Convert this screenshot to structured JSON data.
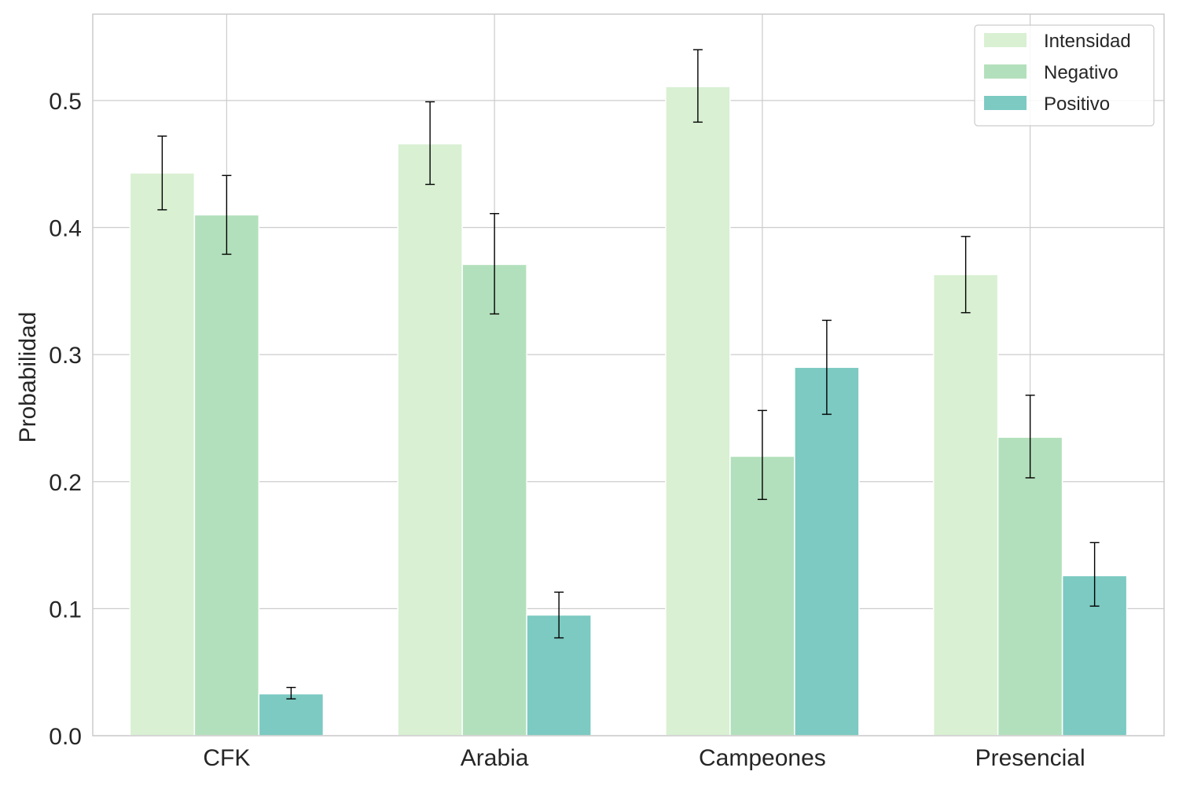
{
  "chart_data": {
    "type": "bar",
    "ylabel": "Probabilidad",
    "xlabel": "",
    "categories": [
      "CFK",
      "Arabia",
      "Campeones",
      "Presencial"
    ],
    "ylim": [
      0,
      0.568
    ],
    "yticks": [
      0.0,
      0.1,
      0.2,
      0.3,
      0.4,
      0.5
    ],
    "ytick_labels": [
      "0.0",
      "0.1",
      "0.2",
      "0.3",
      "0.4",
      "0.5"
    ],
    "grid": true,
    "legend_position": "top-right",
    "series": [
      {
        "name": "Intensidad",
        "color": "#d9f0d3",
        "values": [
          0.443,
          0.466,
          0.511,
          0.363
        ],
        "err_low": [
          0.414,
          0.434,
          0.483,
          0.333
        ],
        "err_high": [
          0.472,
          0.499,
          0.54,
          0.393
        ]
      },
      {
        "name": "Negativo",
        "color": "#b3e0bc",
        "values": [
          0.41,
          0.371,
          0.22,
          0.235
        ],
        "err_low": [
          0.379,
          0.332,
          0.186,
          0.203
        ],
        "err_high": [
          0.441,
          0.411,
          0.256,
          0.268
        ]
      },
      {
        "name": "Positivo",
        "color": "#7ccac2",
        "values": [
          0.033,
          0.095,
          0.29,
          0.126
        ],
        "err_low": [
          0.029,
          0.077,
          0.253,
          0.102
        ],
        "err_high": [
          0.038,
          0.113,
          0.327,
          0.152
        ]
      }
    ]
  }
}
